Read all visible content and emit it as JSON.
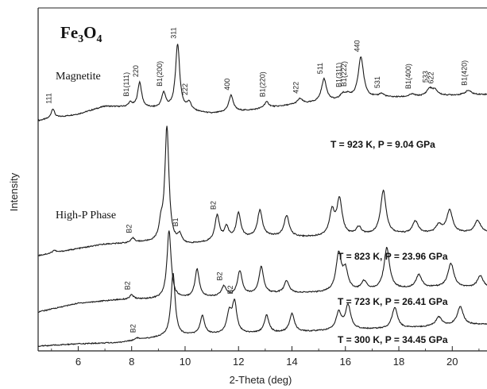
{
  "chart_data": {
    "type": "line",
    "title": "Fe3O4",
    "xlabel": "2-Theta (deg)",
    "ylabel": "Intensity",
    "xlim": [
      4.5,
      21.3
    ],
    "x_ticks": [
      "6",
      "8",
      "10",
      "12",
      "14",
      "16",
      "18",
      "20"
    ],
    "grid": false,
    "group_labels": {
      "magnetite": "Magnetite",
      "high_p": "High-P Phase"
    },
    "series": [
      {
        "conditions": "T = 923 K, P = 9.04 GPa",
        "baseline": 0.0,
        "background": [
          [
            4.5,
            0.0
          ],
          [
            6.0,
            0.15
          ],
          [
            7.0,
            0.33
          ],
          [
            8.0,
            0.3
          ],
          [
            9.5,
            0.26
          ],
          [
            11.0,
            0.16
          ],
          [
            12.5,
            0.24
          ],
          [
            14.0,
            0.36
          ],
          [
            15.5,
            0.44
          ],
          [
            17.0,
            0.52
          ],
          [
            18.5,
            0.54
          ],
          [
            20.0,
            0.58
          ],
          [
            21.3,
            0.6
          ]
        ],
        "peaks": [
          {
            "x": 5.05,
            "h": 0.22,
            "label": "111"
          },
          {
            "x": 7.95,
            "h": 0.1,
            "label": "B1(111)"
          },
          {
            "x": 8.3,
            "h": 0.58,
            "label": "220"
          },
          {
            "x": 9.2,
            "h": 0.35,
            "label": "B1(200)"
          },
          {
            "x": 9.72,
            "h": 1.5,
            "label": "311"
          },
          {
            "x": 10.15,
            "h": 0.18,
            "label": "222"
          },
          {
            "x": 11.72,
            "h": 0.38,
            "label": "400"
          },
          {
            "x": 13.05,
            "h": 0.14,
            "label": "B1(220)"
          },
          {
            "x": 14.3,
            "h": 0.12,
            "label": "422"
          },
          {
            "x": 15.2,
            "h": 0.52,
            "label": "511"
          },
          {
            "x": 15.9,
            "h": 0.12,
            "label": "B1(311)"
          },
          {
            "x": 16.1,
            "h": 0.1,
            "label": "B1(222)"
          },
          {
            "x": 16.58,
            "h": 0.95,
            "label": "440"
          },
          {
            "x": 17.35,
            "h": 0.08,
            "label": "531"
          },
          {
            "x": 18.5,
            "h": 0.06,
            "label": "B1(400)"
          },
          {
            "x": 19.15,
            "h": 0.16,
            "label": "533"
          },
          {
            "x": 19.35,
            "h": 0.12,
            "label": "622"
          },
          {
            "x": 20.6,
            "h": 0.1,
            "label": "B1(420)"
          }
        ]
      },
      {
        "conditions": "T = 823 K, P = 23.96 GPa",
        "baseline": -4.05,
        "background": [
          [
            4.5,
            0.0
          ],
          [
            6.0,
            0.16
          ],
          [
            7.0,
            0.26
          ],
          [
            8.5,
            0.3
          ],
          [
            10.0,
            0.24
          ],
          [
            11.5,
            0.34
          ],
          [
            13.0,
            0.44
          ],
          [
            14.5,
            0.42
          ],
          [
            16.0,
            0.44
          ],
          [
            17.5,
            0.48
          ],
          [
            19.0,
            0.5
          ],
          [
            21.3,
            0.52
          ]
        ],
        "peaks": [
          {
            "x": 5.1,
            "h": 0.06,
            "label": ""
          },
          {
            "x": 8.05,
            "h": 0.1,
            "label": "B2"
          },
          {
            "x": 9.1,
            "h": 0.35,
            "label": ""
          },
          {
            "x": 9.32,
            "h": 2.65,
            "label": ""
          },
          {
            "x": 9.8,
            "h": 0.2,
            "label": "B1"
          },
          {
            "x": 11.2,
            "h": 0.58,
            "label": "B2"
          },
          {
            "x": 11.55,
            "h": 0.28,
            "label": ""
          },
          {
            "x": 12.0,
            "h": 0.58,
            "label": ""
          },
          {
            "x": 12.8,
            "h": 0.6,
            "label": ""
          },
          {
            "x": 13.8,
            "h": 0.48,
            "label": ""
          },
          {
            "x": 15.5,
            "h": 0.55,
            "label": ""
          },
          {
            "x": 15.78,
            "h": 0.82,
            "label": ""
          },
          {
            "x": 16.5,
            "h": 0.18,
            "label": ""
          },
          {
            "x": 17.42,
            "h": 1.0,
            "label": ""
          },
          {
            "x": 18.62,
            "h": 0.28,
            "label": ""
          },
          {
            "x": 19.5,
            "h": 0.18,
            "label": ""
          },
          {
            "x": 19.9,
            "h": 0.52,
            "label": ""
          },
          {
            "x": 20.95,
            "h": 0.28,
            "label": ""
          }
        ]
      },
      {
        "conditions": "T = 723 K, P = 26.41 GPa",
        "baseline": -5.05,
        "background": [
          [
            4.5,
            0.0
          ],
          [
            6.0,
            0.2
          ],
          [
            7.5,
            0.28
          ],
          [
            9.0,
            0.3
          ],
          [
            10.5,
            0.32
          ],
          [
            12.0,
            0.38
          ],
          [
            13.5,
            0.42
          ],
          [
            15.0,
            0.44
          ],
          [
            16.5,
            0.48
          ],
          [
            18.0,
            0.52
          ],
          [
            19.5,
            0.56
          ],
          [
            21.3,
            0.54
          ]
        ],
        "peaks": [
          {
            "x": 8.0,
            "h": 0.1,
            "label": "B2"
          },
          {
            "x": 9.4,
            "h": 1.55,
            "label": ""
          },
          {
            "x": 10.45,
            "h": 0.65,
            "label": ""
          },
          {
            "x": 11.45,
            "h": 0.22,
            "label": "B2"
          },
          {
            "x": 12.05,
            "h": 0.55,
            "label": ""
          },
          {
            "x": 12.85,
            "h": 0.62,
            "label": ""
          },
          {
            "x": 13.8,
            "h": 0.28,
            "label": ""
          },
          {
            "x": 15.75,
            "h": 0.85,
            "label": ""
          },
          {
            "x": 16.0,
            "h": 0.45,
            "label": ""
          },
          {
            "x": 16.7,
            "h": 0.2,
            "label": ""
          },
          {
            "x": 17.55,
            "h": 0.95,
            "label": ""
          },
          {
            "x": 18.75,
            "h": 0.3,
            "label": ""
          },
          {
            "x": 19.95,
            "h": 0.55,
            "label": ""
          },
          {
            "x": 21.05,
            "h": 0.28,
            "label": ""
          }
        ]
      },
      {
        "conditions": "T = 300 K, P = 34.45 GPa",
        "baseline": -6.05,
        "background": [
          [
            4.5,
            0.0
          ],
          [
            6.0,
            0.05
          ],
          [
            7.5,
            0.08
          ],
          [
            9.0,
            0.2
          ],
          [
            10.5,
            0.26
          ],
          [
            12.0,
            0.28
          ],
          [
            13.5,
            0.3
          ],
          [
            15.0,
            0.34
          ],
          [
            16.5,
            0.38
          ],
          [
            18.0,
            0.4
          ],
          [
            19.5,
            0.46
          ],
          [
            21.3,
            0.5
          ]
        ],
        "peaks": [
          {
            "x": 8.2,
            "h": 0.05,
            "label": "B2"
          },
          {
            "x": 9.55,
            "h": 1.45,
            "label": ""
          },
          {
            "x": 10.65,
            "h": 0.42,
            "label": ""
          },
          {
            "x": 11.65,
            "h": 0.45,
            "label": ""
          },
          {
            "x": 11.85,
            "h": 0.7,
            "label": "B2"
          },
          {
            "x": 13.05,
            "h": 0.4,
            "label": ""
          },
          {
            "x": 14.0,
            "h": 0.42,
            "label": ""
          },
          {
            "x": 15.75,
            "h": 0.4,
            "label": ""
          },
          {
            "x": 16.1,
            "h": 0.55,
            "label": ""
          },
          {
            "x": 17.85,
            "h": 0.48,
            "label": ""
          },
          {
            "x": 19.5,
            "h": 0.2,
            "label": ""
          },
          {
            "x": 20.3,
            "h": 0.42,
            "label": ""
          }
        ]
      }
    ]
  }
}
